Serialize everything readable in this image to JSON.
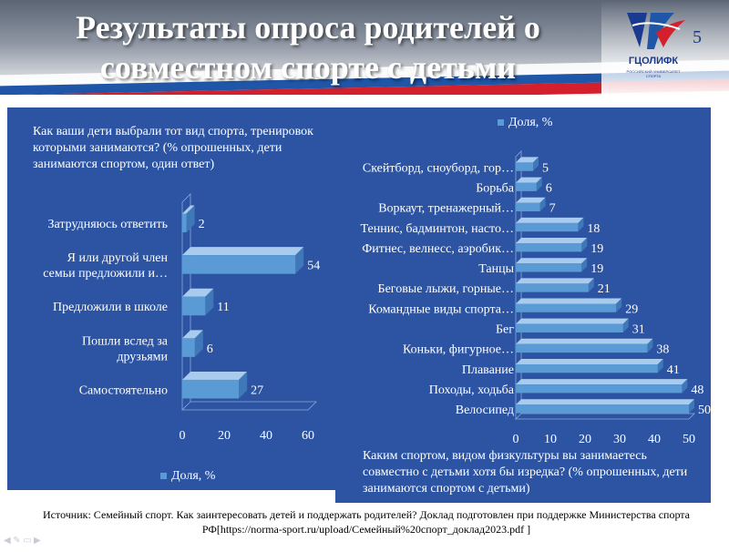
{
  "slide": {
    "title": "Результаты опроса родителей о совместном спорте с детьми",
    "page_number": "5",
    "logo_text": "ГЦОЛИФК",
    "logo_subtext": "РОССИЙСКИЙ УНИВЕРСИТЕТ СПОРТА",
    "source": "Источник: Семейный спорт. Как заинтересовать детей и поддержать родителей? Доклад подготовлен при поддержке Министерства спорта РФ[https://norma-sport.ru/upload/Семейный%20спорт_доклад2023.pdf ]"
  },
  "colors": {
    "panel": "#2c54a2",
    "bar": "#5b9bd5",
    "bar_edge": "#a9cbee",
    "text": "#ffffff",
    "flag_blue": "#1f56a8",
    "flag_red": "#d4202c"
  },
  "chart_data": [
    {
      "type": "bar",
      "orientation": "horizontal",
      "title": "Как ваши дети выбрали тот вид спорта, тренировок которыми занимаются? (% опрошенных, дети занимаются спортом, один ответ)",
      "categories": [
        "Затрудняюсь ответить",
        "Я или другой член семьи предложили и…",
        "Предложили в школе",
        "Пошли вслед за друзьями",
        "Самостоятельно"
      ],
      "series": [
        {
          "name": "Доля, %",
          "values": [
            2,
            54,
            11,
            6,
            27
          ]
        }
      ],
      "xlim": [
        0,
        60
      ],
      "xticks": [
        "0",
        "20",
        "40",
        "60"
      ],
      "legend": "bottom",
      "grid": false
    },
    {
      "type": "bar",
      "orientation": "horizontal",
      "title": "Каким спортом, видом физкультуры вы занимаетесь совместно с детьми хотя бы изредка? (% опрошенных, дети занимаются спортом с детьми)",
      "categories": [
        "Скейтборд, сноуборд, гор…",
        "Борьба",
        "Воркаут, тренажерный…",
        "Теннис, бадминтон, насто…",
        "Фитнес, велнесс, аэробик…",
        "Танцы",
        "Беговые лыжи, горные…",
        "Командные виды спорта…",
        "Бег",
        "Коньки, фигурное…",
        "Плавание",
        "Походы, ходьба",
        "Велосипед"
      ],
      "series": [
        {
          "name": "Доля, %",
          "values": [
            5,
            6,
            7,
            18,
            19,
            19,
            21,
            29,
            31,
            38,
            41,
            48,
            50
          ]
        }
      ],
      "xlim": [
        0,
        50
      ],
      "xticks": [
        "0",
        "10",
        "20",
        "30",
        "40",
        "50"
      ],
      "legend": "top",
      "grid": false
    }
  ]
}
